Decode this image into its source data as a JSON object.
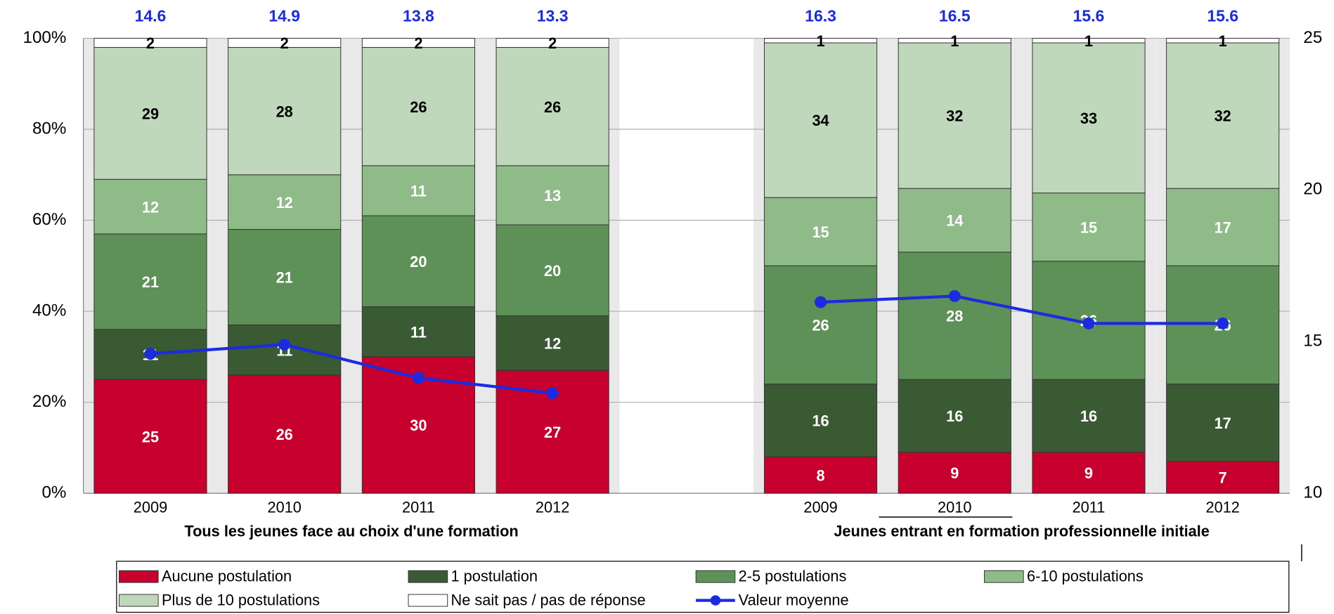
{
  "chart_data": {
    "type": "bar",
    "stacked": true,
    "categories": [
      "2009",
      "2010",
      "2011",
      "2012",
      null,
      "2009",
      "2010",
      "2011",
      "2012"
    ],
    "groups": [
      "Tous les jeunes face au choix d'une formation",
      "Jeunes entrant en formation professionnelle initiale"
    ],
    "series": [
      {
        "name": "Aucune postulation",
        "color": "#c8002e",
        "label_color": "#ffffff",
        "values": [
          25,
          26,
          30,
          27,
          null,
          8,
          9,
          9,
          7
        ]
      },
      {
        "name": "1 postulation",
        "color": "#3a5a34",
        "label_color": "#ffffff",
        "values": [
          11,
          11,
          11,
          12,
          null,
          16,
          16,
          16,
          17
        ]
      },
      {
        "name": "2-5 postulations",
        "color": "#5e9157",
        "label_color": "#ffffff",
        "values": [
          21,
          21,
          20,
          20,
          null,
          26,
          28,
          26,
          26
        ]
      },
      {
        "name": "6-10 postulations",
        "color": "#8fbb88",
        "label_color": "#ffffff",
        "values": [
          12,
          12,
          11,
          13,
          null,
          15,
          14,
          15,
          17
        ]
      },
      {
        "name": "Plus de 10 postulations",
        "color": "#bfd7bb",
        "label_color": "#000000",
        "values": [
          29,
          28,
          26,
          26,
          null,
          34,
          32,
          33,
          32
        ]
      },
      {
        "name": "Ne sait pas / pas de réponse",
        "color": "#ffffff",
        "label_color": "#000000",
        "values": [
          2,
          2,
          2,
          2,
          null,
          1,
          1,
          1,
          1
        ]
      },
      {
        "name": "Valeur moyenne",
        "type": "line",
        "axis": "y2",
        "color": "#1a2be0",
        "label_color": "#1a2be0",
        "values": [
          14.6,
          14.9,
          13.8,
          13.3,
          null,
          16.3,
          16.5,
          15.6,
          15.6
        ]
      }
    ],
    "ylim": [
      0,
      100
    ],
    "yticks": [
      {
        "value": 0,
        "label": "0%"
      },
      {
        "value": 20,
        "label": "20%"
      },
      {
        "value": 40,
        "label": "40%"
      },
      {
        "value": 60,
        "label": "60%"
      },
      {
        "value": 80,
        "label": "80%"
      },
      {
        "value": 100,
        "label": "100%"
      }
    ],
    "y2lim": [
      10,
      25
    ],
    "y2ticks": [
      10,
      15,
      20,
      25
    ],
    "grid": true,
    "legend": "bottom"
  }
}
